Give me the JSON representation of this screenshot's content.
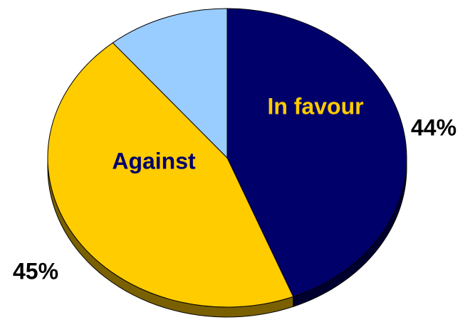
{
  "chart_data": {
    "type": "pie",
    "title": "",
    "slices": [
      {
        "label": "In favour",
        "value": 44,
        "percent_label": "44%",
        "color": "#00006b",
        "side_color": "#00002e",
        "label_color": "#ffcc00"
      },
      {
        "label": "Against",
        "value": 45,
        "percent_label": "45%",
        "color": "#ffcc00",
        "side_color": "#7a6000",
        "label_color": "#00006b"
      },
      {
        "label": "",
        "value": 11,
        "percent_label": "",
        "color": "#99ccff",
        "side_color": "#4d6680",
        "label_color": "#000000"
      }
    ]
  }
}
